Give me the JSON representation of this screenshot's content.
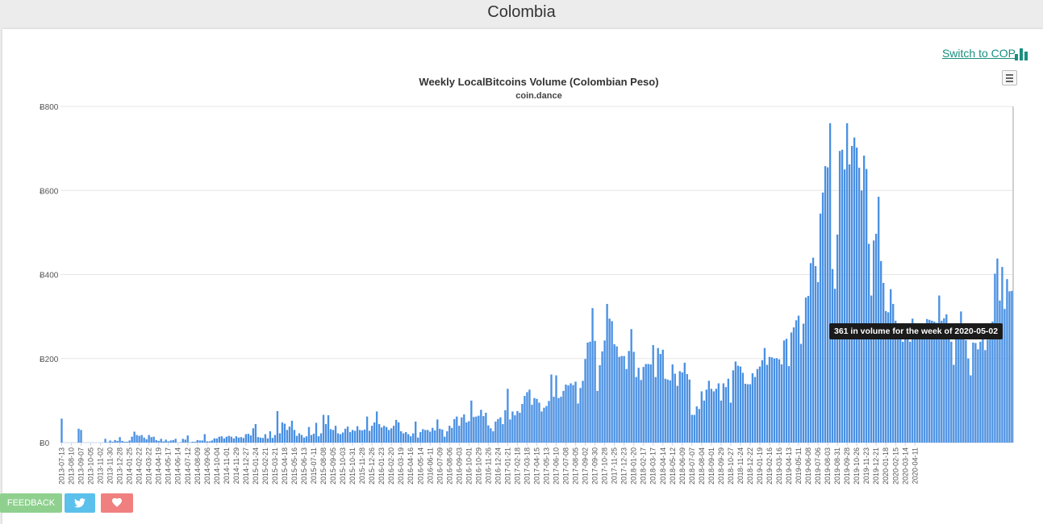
{
  "page": {
    "title": "Colombia"
  },
  "switch_link": {
    "label": "Switch to COP"
  },
  "icons": {
    "switch": "bar-chart-icon",
    "menu": "hamburger-menu-icon",
    "twitter": "twitter-icon",
    "heart": "heart-icon"
  },
  "colors": {
    "accent": "#1a8f80",
    "bar": "#4a90e2"
  },
  "footer": {
    "feedback_label": "FEEDBACK"
  },
  "tooltip": {
    "text": "361 in volume for the week of 2020-05-02"
  },
  "chart_data": {
    "type": "bar",
    "title": "Weekly LocalBitcoins Volume (Colombian Peso)",
    "subtitle": "coin.dance",
    "x_start": "2013-07-13",
    "x_ticks": [
      "2013-07-13",
      "2013-08-10",
      "2013-09-07",
      "2013-10-05",
      "2013-11-02",
      "2013-11-30",
      "2013-12-28",
      "2014-01-25",
      "2014-02-22",
      "2014-03-22",
      "2014-04-19",
      "2014-05-17",
      "2014-06-14",
      "2014-07-12",
      "2014-08-09",
      "2014-09-06",
      "2014-10-04",
      "2014-11-01",
      "2014-11-29",
      "2014-12-27",
      "2015-01-24",
      "2015-02-21",
      "2015-03-21",
      "2015-04-18",
      "2015-05-16",
      "2015-06-13",
      "2015-07-11",
      "2015-08-08",
      "2015-09-05",
      "2015-10-03",
      "2015-10-31",
      "2015-11-28",
      "2015-12-26",
      "2016-01-23",
      "2016-02-20",
      "2016-03-19",
      "2016-04-16",
      "2016-05-14",
      "2016-06-11",
      "2016-07-09",
      "2016-08-06",
      "2016-09-03",
      "2016-10-01",
      "2016-10-29",
      "2016-11-26",
      "2016-12-24",
      "2017-01-21",
      "2017-02-18",
      "2017-03-18",
      "2017-04-15",
      "2017-05-13",
      "2017-06-10",
      "2017-07-08",
      "2017-08-05",
      "2017-09-02",
      "2017-09-30",
      "2017-10-28",
      "2017-11-25",
      "2017-12-23",
      "2018-01-20",
      "2018-02-17",
      "2018-03-17",
      "2018-04-14",
      "2018-05-12",
      "2018-06-09",
      "2018-07-07",
      "2018-08-04",
      "2018-09-01",
      "2018-09-29",
      "2018-10-27",
      "2018-11-24",
      "2018-12-22",
      "2019-01-19",
      "2019-02-16",
      "2019-03-16",
      "2019-04-13",
      "2019-05-11",
      "2019-06-08",
      "2019-07-06",
      "2019-08-03",
      "2019-08-31",
      "2019-09-28",
      "2019-10-26",
      "2019-11-23",
      "2019-12-21",
      "2020-01-18",
      "2020-02-15",
      "2020-03-14",
      "2020-04-11"
    ],
    "y_ticks": [
      "Ƀ0",
      "Ƀ200",
      "Ƀ400",
      "Ƀ600",
      "Ƀ800"
    ],
    "ylim": [
      0,
      800
    ],
    "values": [
      57,
      0,
      0,
      0,
      0,
      0,
      0,
      33,
      30,
      0,
      0,
      0,
      0,
      0,
      0,
      0,
      0,
      0,
      9,
      1,
      5,
      2,
      6,
      4,
      13,
      4,
      2,
      2,
      5,
      14,
      26,
      18,
      16,
      18,
      12,
      8,
      18,
      13,
      14,
      6,
      4,
      9,
      3,
      7,
      3,
      5,
      6,
      9,
      0,
      1,
      9,
      7,
      17,
      1,
      2,
      2,
      6,
      5,
      5,
      20,
      3,
      3,
      5,
      10,
      10,
      14,
      15,
      10,
      14,
      16,
      14,
      10,
      15,
      12,
      13,
      11,
      20,
      21,
      17,
      34,
      44,
      13,
      12,
      11,
      20,
      10,
      27,
      11,
      18,
      75,
      22,
      48,
      45,
      30,
      38,
      52,
      30,
      16,
      22,
      18,
      12,
      15,
      37,
      18,
      21,
      47,
      15,
      22,
      66,
      44,
      65,
      32,
      30,
      40,
      22,
      20,
      24,
      33,
      38,
      25,
      30,
      28,
      39,
      30,
      29,
      31,
      62,
      28,
      40,
      48,
      74,
      44,
      36,
      40,
      37,
      30,
      34,
      40,
      54,
      48,
      27,
      22,
      25,
      20,
      15,
      22,
      50,
      12,
      25,
      32,
      30,
      30,
      26,
      35,
      29,
      55,
      33,
      31,
      14,
      27,
      40,
      35,
      56,
      62,
      40,
      60,
      67,
      48,
      51,
      100,
      61,
      62,
      64,
      78,
      63,
      71,
      41,
      34,
      27,
      50,
      56,
      60,
      44,
      77,
      128,
      55,
      74,
      65,
      75,
      71,
      92,
      111,
      120,
      126,
      90,
      106,
      104,
      95,
      74,
      83,
      87,
      99,
      162,
      109,
      160,
      106,
      109,
      123,
      138,
      136,
      141,
      137,
      145,
      93,
      130,
      147,
      199,
      238,
      240,
      320,
      242,
      123,
      184,
      217,
      243,
      330,
      295,
      289,
      234,
      229,
      204,
      206,
      206,
      175,
      218,
      270,
      216,
      156,
      178,
      149,
      180,
      187,
      187,
      186,
      232,
      156,
      225,
      211,
      221,
      152,
      150,
      148,
      186,
      164,
      135,
      170,
      167,
      190,
      163,
      150,
      66,
      66,
      86,
      80,
      122,
      100,
      126,
      147,
      128,
      122,
      128,
      141,
      100,
      141,
      132,
      152,
      95,
      172,
      193,
      183,
      181,
      166,
      140,
      139,
      139,
      165,
      156,
      175,
      181,
      196,
      225,
      185,
      204,
      203,
      200,
      201,
      198,
      186,
      243,
      247,
      182,
      262,
      274,
      291,
      302,
      235,
      283,
      345,
      349,
      427,
      440,
      420,
      382,
      545,
      595,
      658,
      655,
      760,
      413,
      366,
      495,
      694,
      697,
      650,
      760,
      662,
      706,
      726,
      702,
      654,
      600,
      683,
      651,
      473,
      350,
      481,
      497,
      585,
      432,
      380,
      313,
      310,
      365,
      330,
      290,
      270,
      265,
      240,
      250,
      266,
      240,
      295,
      250,
      265,
      277,
      280,
      265,
      294,
      292,
      290,
      288,
      285,
      350,
      290,
      296,
      305,
      278,
      240,
      185,
      268,
      280,
      312,
      275,
      244,
      200,
      160,
      238,
      237,
      222,
      240,
      262,
      220,
      245,
      250,
      288,
      402,
      438,
      338,
      418,
      318,
      389,
      360,
      361
    ]
  }
}
